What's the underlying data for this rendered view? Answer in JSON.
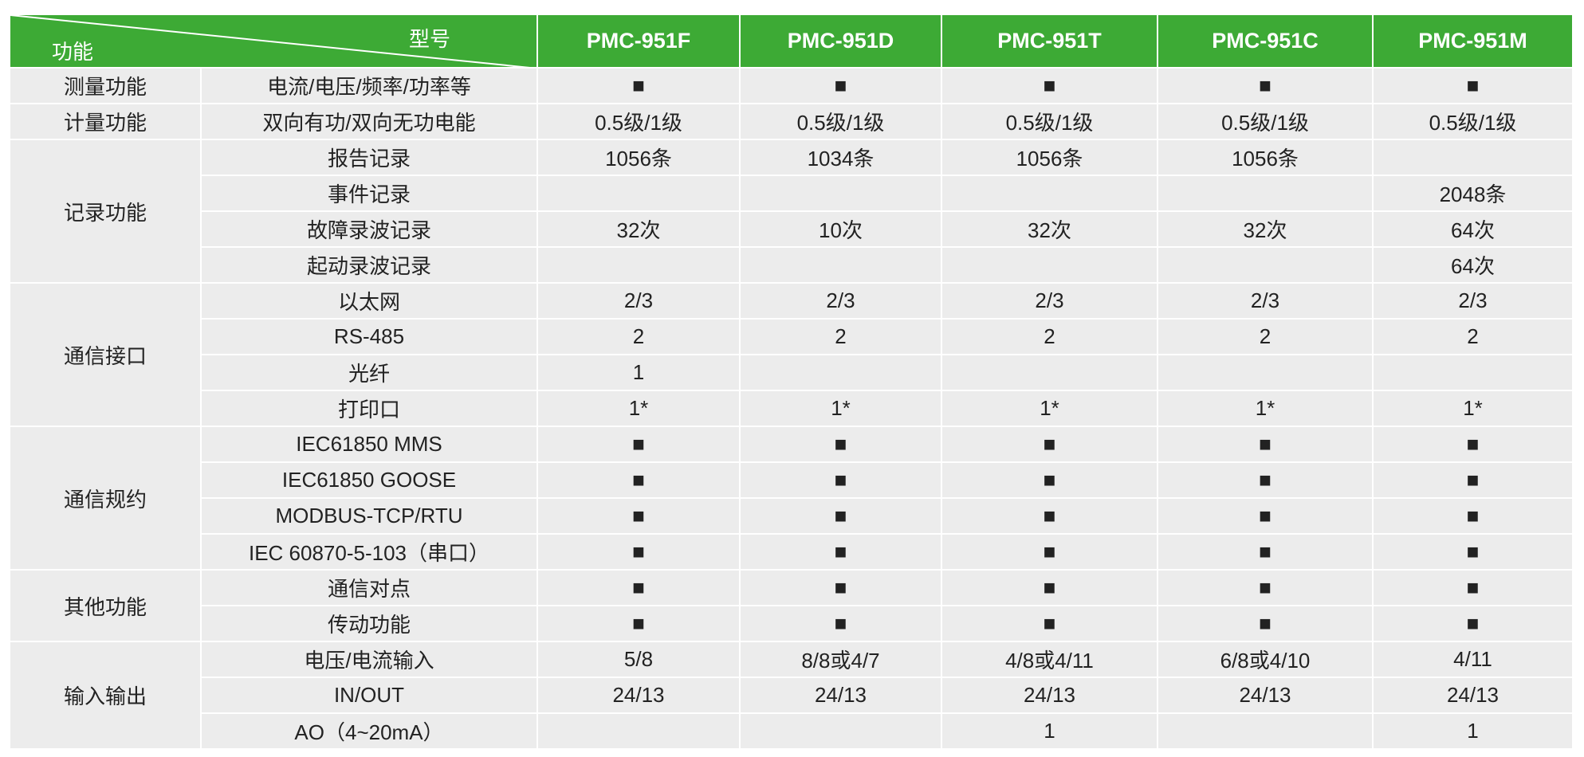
{
  "header": {
    "corner_top": "型号",
    "corner_bottom": "功能",
    "models": [
      "PMC-951F",
      "PMC-951D",
      "PMC-951T",
      "PMC-951C",
      "PMC-951M"
    ]
  },
  "groups": [
    {
      "name": "测量功能",
      "rows": [
        {
          "feature": "电流/电压/频率/功率等",
          "cells": [
            "■",
            "■",
            "■",
            "■",
            "■"
          ]
        }
      ]
    },
    {
      "name": "计量功能",
      "rows": [
        {
          "feature": "双向有功/双向无功电能",
          "cells": [
            "0.5级/1级",
            "0.5级/1级",
            "0.5级/1级",
            "0.5级/1级",
            "0.5级/1级"
          ]
        }
      ]
    },
    {
      "name": "记录功能",
      "rows": [
        {
          "feature": "报告记录",
          "cells": [
            "1056条",
            "1034条",
            "1056条",
            "1056条",
            null
          ]
        },
        {
          "feature": "事件记录",
          "cells": [
            null,
            null,
            null,
            null,
            "2048条"
          ]
        },
        {
          "feature": "故障录波记录",
          "cells": [
            "32次",
            "10次",
            "32次",
            "32次",
            "64次"
          ]
        },
        {
          "feature": "起动录波记录",
          "cells": [
            null,
            null,
            null,
            null,
            "64次"
          ]
        }
      ]
    },
    {
      "name": "通信接口",
      "rows": [
        {
          "feature": "以太网",
          "cells": [
            "2/3",
            "2/3",
            "2/3",
            "2/3",
            "2/3"
          ]
        },
        {
          "feature": "RS-485",
          "cells": [
            "2",
            "2",
            "2",
            "2",
            "2"
          ]
        },
        {
          "feature": "光纤",
          "cells": [
            "1",
            null,
            null,
            null,
            null
          ]
        },
        {
          "feature": "打印口",
          "cells": [
            "1*",
            "1*",
            "1*",
            "1*",
            "1*"
          ]
        }
      ]
    },
    {
      "name": "通信规约",
      "rows": [
        {
          "feature": "IEC61850 MMS",
          "cells": [
            "■",
            "■",
            "■",
            "■",
            "■"
          ]
        },
        {
          "feature": "IEC61850 GOOSE",
          "cells": [
            "■",
            "■",
            "■",
            "■",
            "■"
          ]
        },
        {
          "feature": "MODBUS-TCP/RTU",
          "cells": [
            "■",
            "■",
            "■",
            "■",
            "■"
          ]
        },
        {
          "feature": "IEC 60870-5-103（串口）",
          "cells": [
            "■",
            "■",
            "■",
            "■",
            "■"
          ]
        }
      ]
    },
    {
      "name": "其他功能",
      "rows": [
        {
          "feature": "通信对点",
          "cells": [
            "■",
            "■",
            "■",
            "■",
            "■"
          ]
        },
        {
          "feature": "传动功能",
          "cells": [
            "■",
            "■",
            "■",
            "■",
            "■"
          ]
        }
      ]
    },
    {
      "name": "输入输出",
      "rows": [
        {
          "feature": "电压/电流输入",
          "cells": [
            "5/8",
            "8/8或4/7",
            "4/8或4/11",
            "6/8或4/10",
            "4/11"
          ]
        },
        {
          "feature": "IN/OUT",
          "cells": [
            "24/13",
            "24/13",
            "24/13",
            "24/13",
            "24/13"
          ]
        },
        {
          "feature": "AO（4~20mA）",
          "cells": [
            null,
            null,
            "1",
            null,
            "1"
          ]
        }
      ]
    }
  ]
}
